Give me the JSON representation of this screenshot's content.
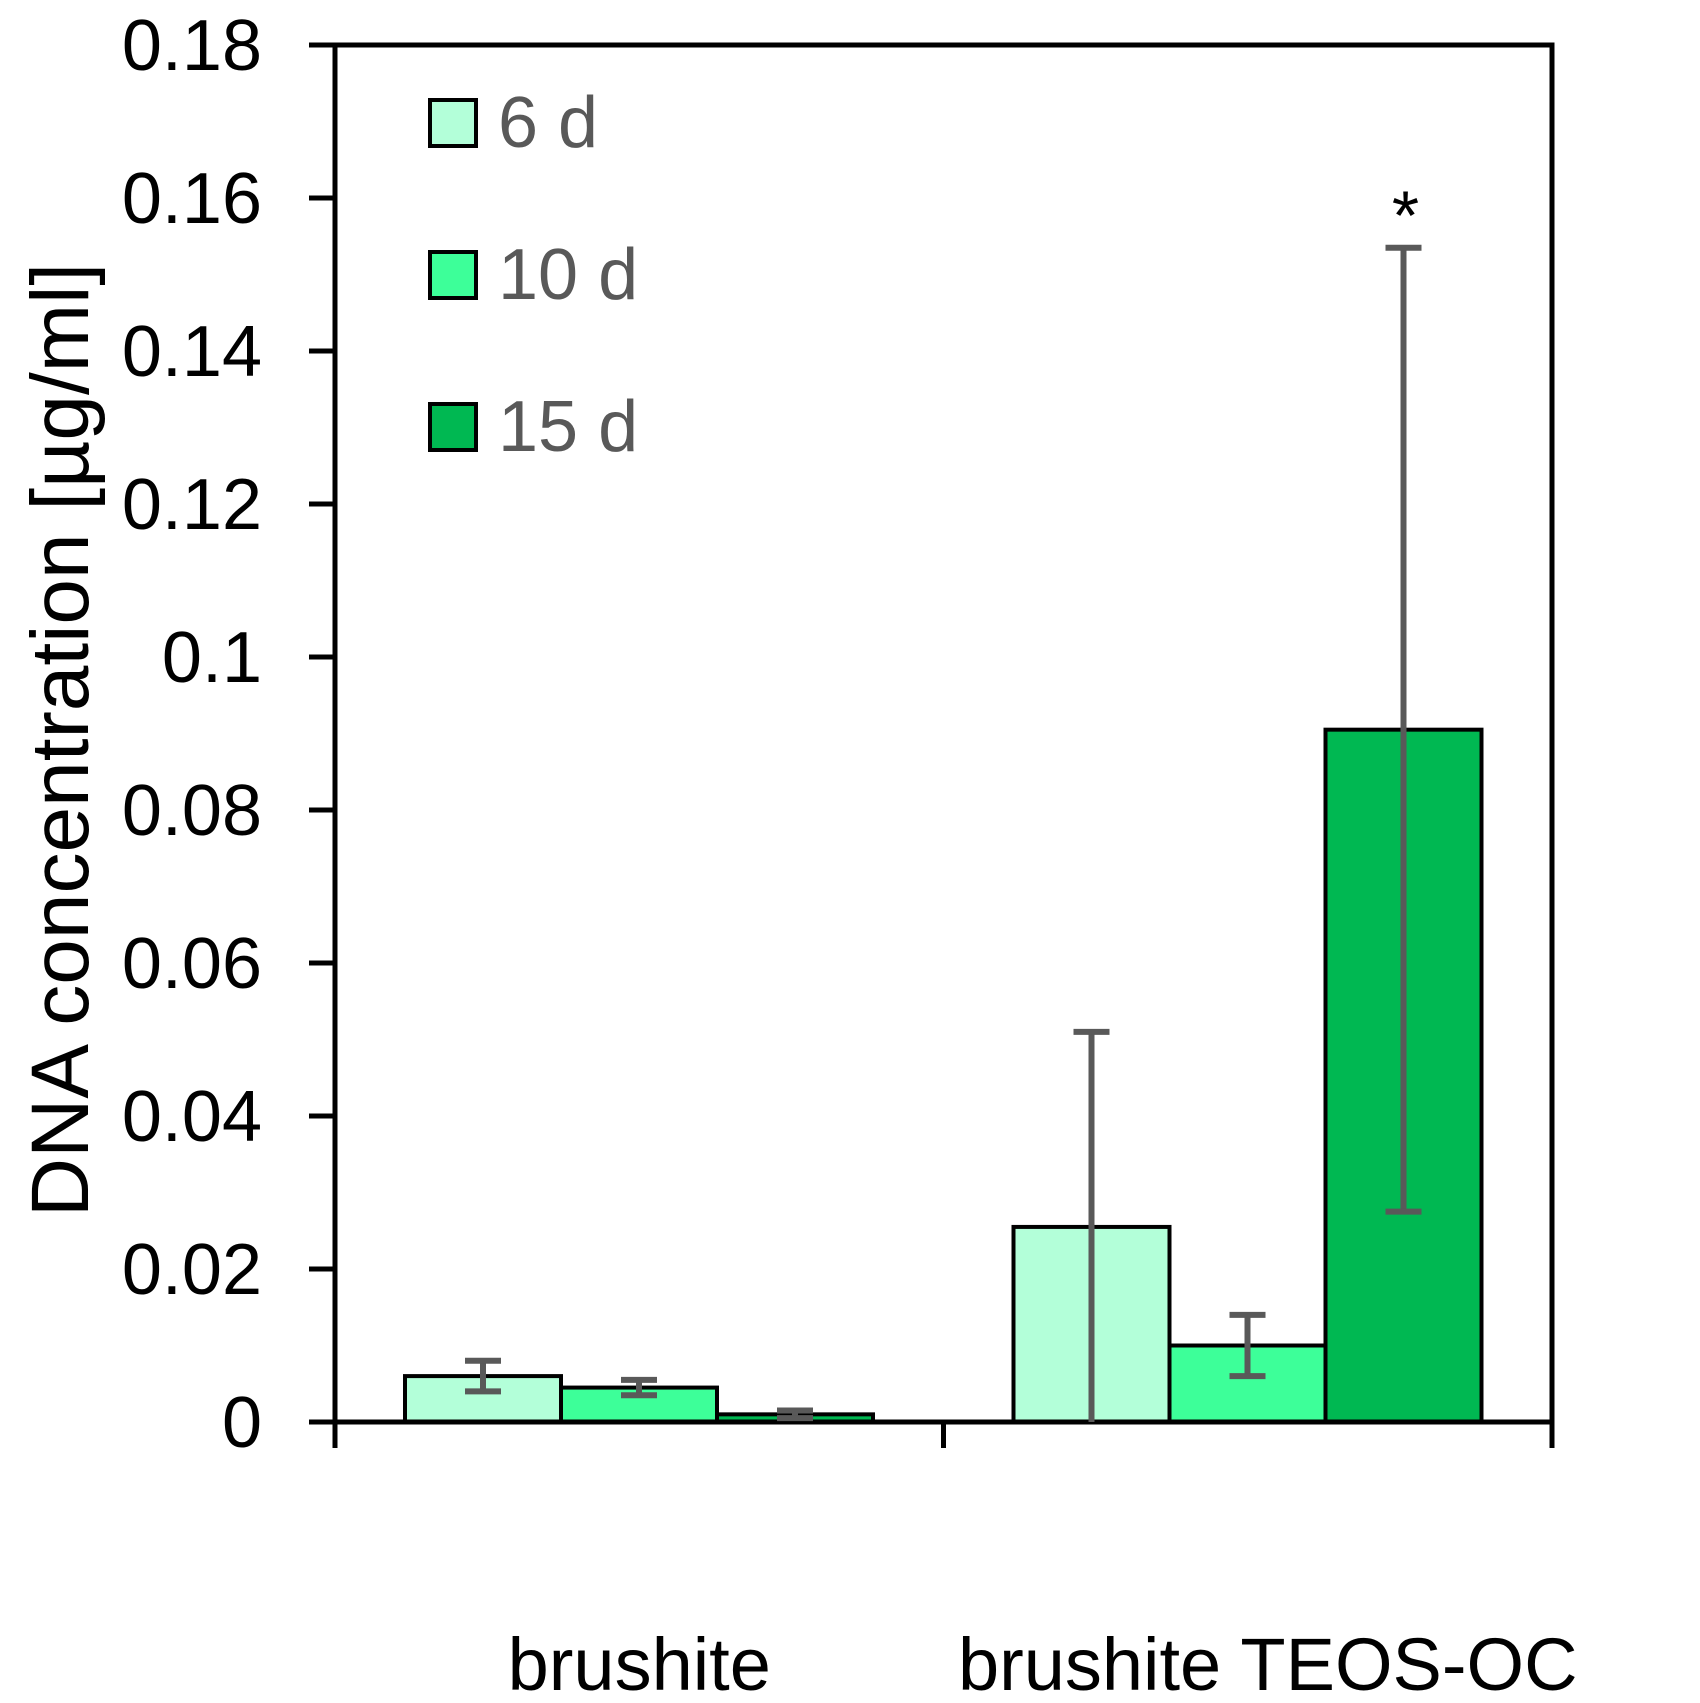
{
  "chart_data": {
    "type": "bar",
    "ylabel": "DNA concentration  [µg/ml]",
    "xlabel": "",
    "ylim": [
      0,
      0.18
    ],
    "yticks": [
      "0",
      "0.02",
      "0.04",
      "0.06",
      "0.08",
      "0.1",
      "0.12",
      "0.14",
      "0.16",
      "0.18"
    ],
    "categories": [
      "brushite",
      "brushite TEOS-OC"
    ],
    "series": [
      {
        "name": "6 d",
        "color": "#b3ffd9",
        "values": [
          0.006,
          0.0255
        ],
        "errors": [
          0.002,
          0.0255
        ]
      },
      {
        "name": "10 d",
        "color": "#3dff99",
        "values": [
          0.0045,
          0.01
        ],
        "errors": [
          0.001,
          0.004
        ]
      },
      {
        "name": "15 d",
        "color": "#00b852",
        "values": [
          0.001,
          0.0905
        ],
        "errors": [
          0.0005,
          0.063
        ]
      }
    ],
    "annotations": [
      {
        "text": "*",
        "category": 1,
        "series": 2
      }
    ],
    "legend_position": "top-left",
    "grid": false
  }
}
